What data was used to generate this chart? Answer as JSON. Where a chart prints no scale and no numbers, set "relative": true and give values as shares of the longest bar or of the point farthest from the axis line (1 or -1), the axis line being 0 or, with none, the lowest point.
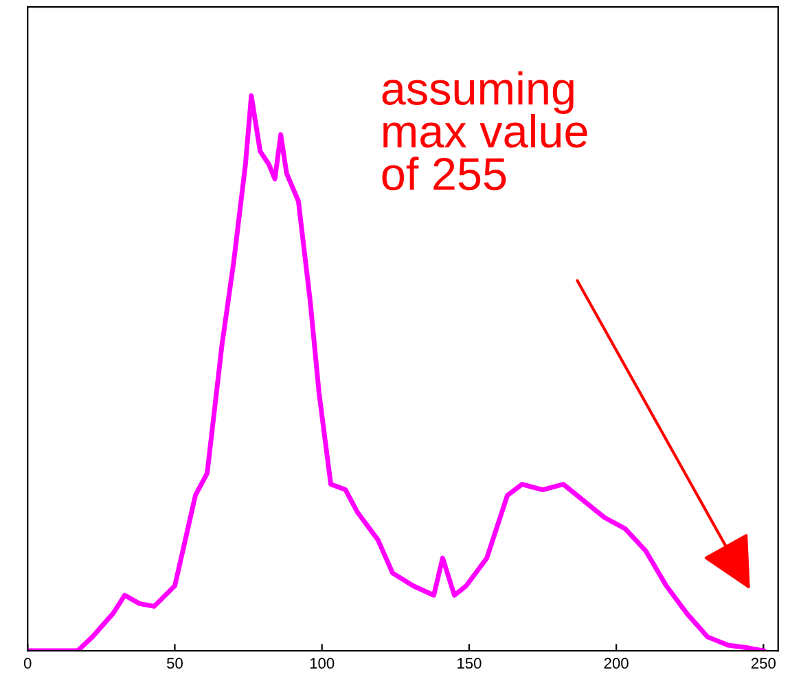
{
  "chart_data": {
    "type": "line",
    "relative": true,
    "x": [
      0,
      17,
      22,
      29,
      33,
      38,
      43,
      50,
      57,
      61,
      66,
      70,
      74,
      76,
      79,
      82,
      84,
      86,
      88,
      92,
      96,
      99,
      103,
      108,
      112,
      119,
      124,
      131,
      138,
      141,
      145,
      149,
      156,
      163,
      168,
      175,
      182,
      189,
      196,
      203,
      210,
      217,
      224,
      231,
      238,
      245,
      250
    ],
    "series": [
      {
        "color": "#ff00ff",
        "values": [
          0,
          0,
          0.025,
          0.067,
          0.1,
          0.085,
          0.08,
          0.117,
          0.28,
          0.32,
          0.55,
          0.7,
          0.876,
          1.0,
          0.9,
          0.876,
          0.85,
          0.93,
          0.86,
          0.81,
          0.63,
          0.465,
          0.3,
          0.29,
          0.25,
          0.2,
          0.14,
          0.117,
          0.1,
          0.167,
          0.1,
          0.117,
          0.167,
          0.28,
          0.3,
          0.29,
          0.3,
          0.27,
          0.24,
          0.22,
          0.18,
          0.117,
          0.067,
          0.025,
          0.01,
          0.005,
          0
        ]
      }
    ],
    "xlim": [
      0,
      255
    ],
    "xticks": [
      0,
      50,
      100,
      150,
      200,
      250
    ],
    "annotations": [
      "assuming\nmax value\nof 255"
    ],
    "grid": false,
    "marker": "none",
    "line_style": "solid"
  }
}
